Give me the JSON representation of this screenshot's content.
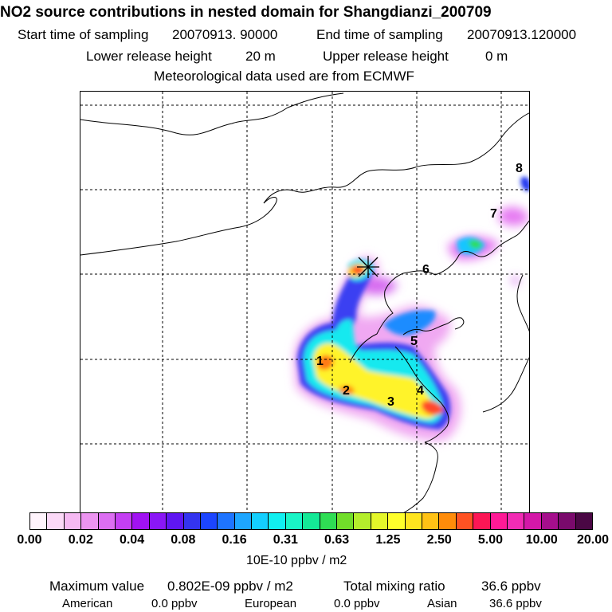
{
  "header": {
    "title": "NO2 source contributions in nested domain for Shangdianzi_200709",
    "start_label": "Start time of sampling",
    "start_value": "20070913. 90000",
    "end_label": "End time of sampling",
    "end_value": "20070913.120000",
    "lower_label": "Lower release height",
    "lower_value": "20 m",
    "upper_label": "Upper release height",
    "upper_value": "0 m",
    "met_line": "Meteorological data used are from ECMWF"
  },
  "map": {
    "region_labels": [
      "1",
      "2",
      "3",
      "4",
      "5",
      "6",
      "7",
      "8"
    ],
    "receptor_marker": "star-icon"
  },
  "colorbar": {
    "tick_labels": [
      "0.00",
      "0.02",
      "0.04",
      "0.08",
      "0.16",
      "0.31",
      "0.63",
      "1.25",
      "2.50",
      "5.00",
      "10.00",
      "20.00"
    ],
    "colors": [
      "#fff4fc",
      "#fbd9f7",
      "#f5b9f2",
      "#ec94f0",
      "#dc6ef2",
      "#c43ff3",
      "#a112f2",
      "#8a17f5",
      "#5f16f2",
      "#3434ef",
      "#1c45ff",
      "#1e74ff",
      "#1ea6ff",
      "#14cfff",
      "#11eff0",
      "#19f4c6",
      "#14e896",
      "#2fdd54",
      "#71dd2a",
      "#b4ee2c",
      "#e4f72a",
      "#ffff2b",
      "#ffe51f",
      "#ffc215",
      "#ff8c0a",
      "#ff5223",
      "#fc1655",
      "#ff1a96",
      "#f22cb4",
      "#d418a8",
      "#a50e8c",
      "#7a0a6c",
      "#4a0744"
    ],
    "units": "10E-10 ppbv / m2"
  },
  "summary": {
    "max_label": "Maximum value",
    "max_value": "0.802E-09 ppbv / m2",
    "total_label": "Total mixing ratio",
    "total_value": "36.6 ppbv",
    "american_label": "American",
    "american_value": "0.0 ppbv",
    "european_label": "European",
    "european_value": "0.0 ppbv",
    "asian_label": "Asian",
    "asian_value": "36.6 ppbv"
  }
}
